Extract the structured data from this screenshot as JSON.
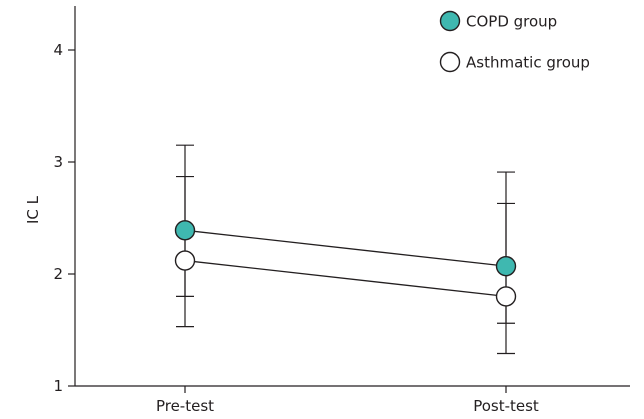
{
  "chart_data": {
    "type": "line",
    "categories": [
      "Pre-test",
      "Post-test"
    ],
    "ylabel": "IC L",
    "ylim": [
      1,
      4.3
    ],
    "yticks": [
      1,
      2,
      3,
      4
    ],
    "grid": false,
    "legend_position": "top-right",
    "series": [
      {
        "name": "COPD group",
        "values": [
          2.39,
          2.07
        ],
        "error_low": [
          1.8,
          1.56
        ],
        "error_high": [
          2.87,
          2.63
        ],
        "fill": "#3fb8b0",
        "stroke": "#231f20"
      },
      {
        "name": "Asthmatic group",
        "values": [
          2.12,
          1.8
        ],
        "error_low": [
          1.53,
          1.29
        ],
        "error_high": [
          3.15,
          2.91
        ],
        "fill": "#ffffff",
        "stroke": "#231f20"
      }
    ]
  }
}
